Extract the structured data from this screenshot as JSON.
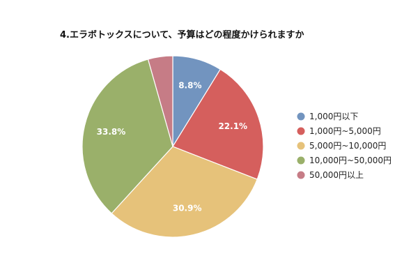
{
  "chart_data": {
    "type": "pie",
    "title": "4.エラボトックスについて、予算はどの程度かけられますか",
    "legend_position": "right",
    "slices": [
      {
        "label": "1,000円以下",
        "value": 8.8,
        "value_label": "8.8%",
        "color": "#7294bf"
      },
      {
        "label": "1,000円~5,000円",
        "value": 22.1,
        "value_label": "22.1%",
        "color": "#d55f5d"
      },
      {
        "label": "5,000円~10,000円",
        "value": 30.9,
        "value_label": "30.9%",
        "color": "#e6c27a"
      },
      {
        "label": "10,000円~50,000円",
        "value": 33.8,
        "value_label": "33.8%",
        "color": "#9ab06a"
      },
      {
        "label": "50,000円以上",
        "value": 4.4,
        "value_label": "",
        "color": "#c67c86"
      }
    ]
  }
}
